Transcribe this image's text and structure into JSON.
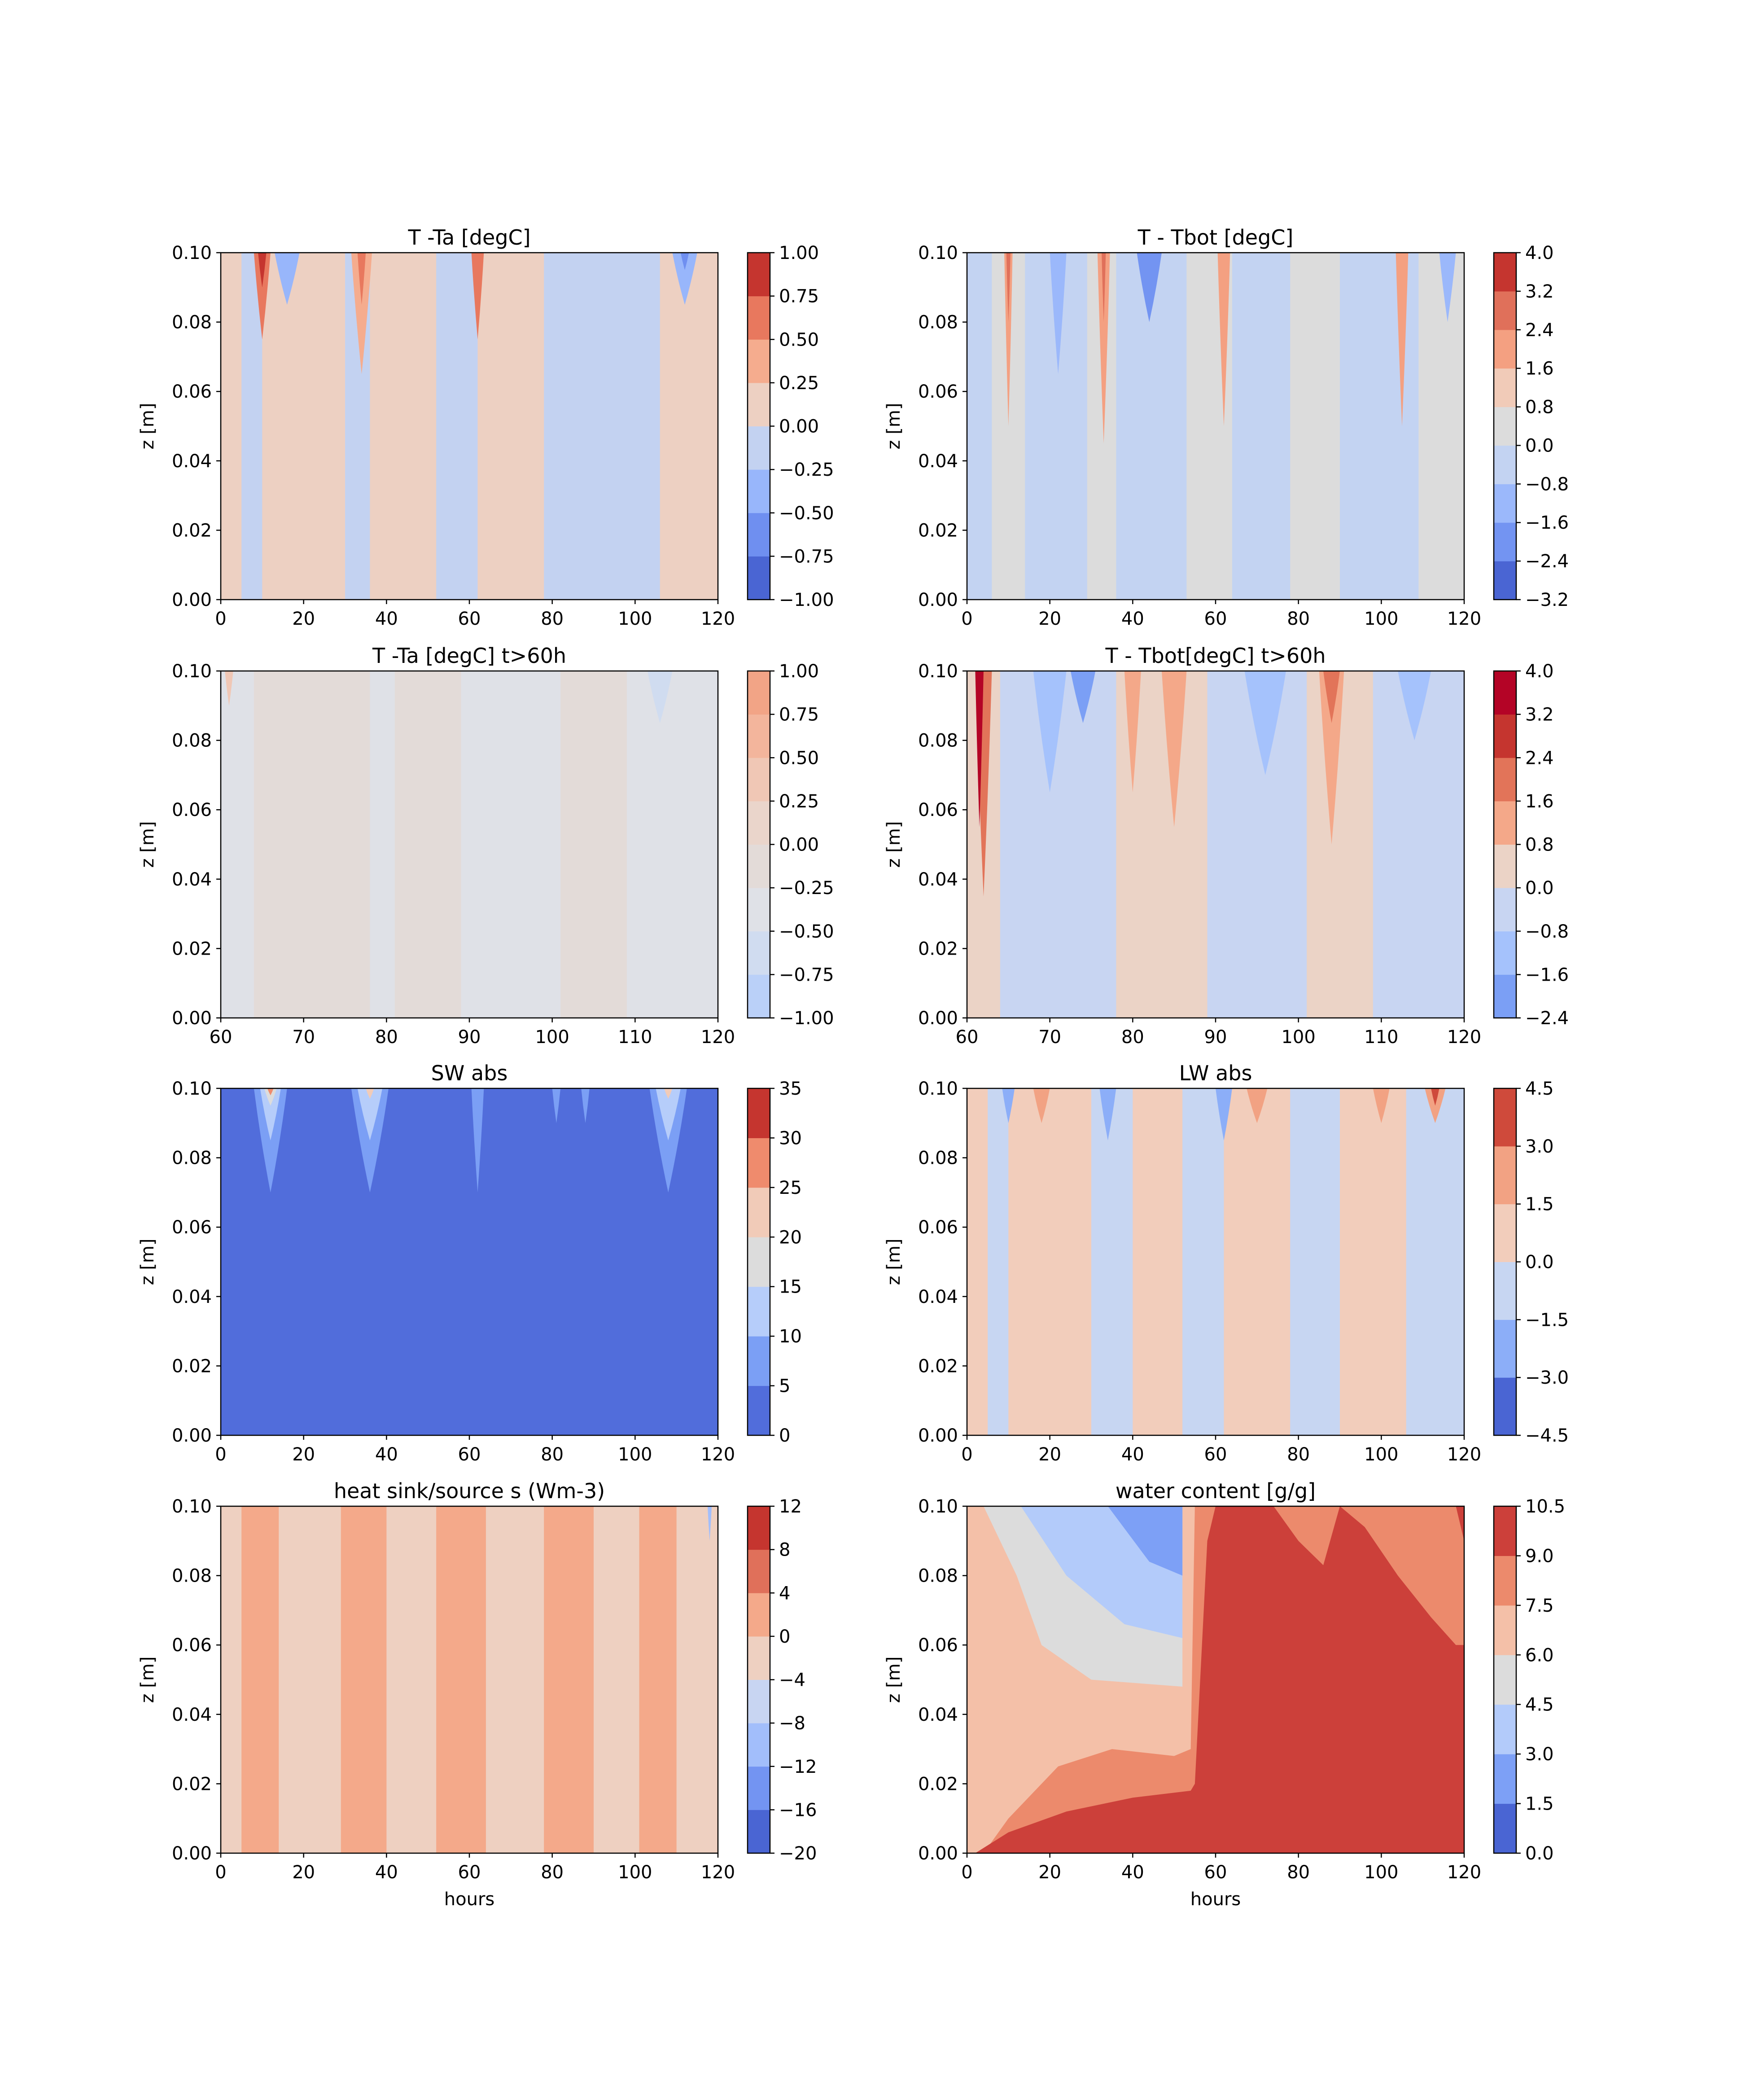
{
  "chart_data": [
    {
      "type": "contour",
      "title": "T -Ta [degC]",
      "xlabel": "",
      "ylabel": "z [m]",
      "xlim": [
        0,
        120
      ],
      "ylim": [
        0.0,
        0.1
      ],
      "xticks": [
        "0",
        "20",
        "40",
        "60",
        "80",
        "100",
        "120"
      ],
      "yticks": [
        "0.00",
        "0.02",
        "0.04",
        "0.06",
        "0.08",
        "0.10"
      ],
      "colorbar_ticks": [
        "1.00",
        "0.75",
        "0.50",
        "0.25",
        "0.00",
        "−0.25",
        "−0.50",
        "−0.75",
        "−1.00"
      ],
      "levels": [
        -1.0,
        -0.75,
        -0.5,
        -0.25,
        0.0,
        0.25,
        0.5,
        0.75,
        1.0
      ],
      "band_colors": [
        "#4a65d3",
        "#6f8ff0",
        "#98b6fb",
        "#c3d2f1",
        "#edd0c2",
        "#f5ac8e",
        "#e8785e",
        "#c5352f"
      ],
      "stripes": [
        {
          "x0": 0,
          "x1": 5,
          "band": 4
        },
        {
          "x0": 5,
          "x1": 10,
          "band": 3
        },
        {
          "x0": 10,
          "x1": 30,
          "band": 4
        },
        {
          "x0": 30,
          "x1": 36,
          "band": 3
        },
        {
          "x0": 36,
          "x1": 52,
          "band": 4
        },
        {
          "x0": 52,
          "x1": 62,
          "band": 3
        },
        {
          "x0": 62,
          "x1": 78,
          "band": 4
        },
        {
          "x0": 78,
          "x1": 106,
          "band": 3
        },
        {
          "x0": 106,
          "x1": 120,
          "band": 4
        }
      ],
      "features": [
        {
          "x": 10,
          "w": 4,
          "z": 0.075,
          "band": 6
        },
        {
          "x": 10,
          "w": 2,
          "z": 0.09,
          "band": 7
        },
        {
          "x": 34,
          "w": 5,
          "z": 0.065,
          "band": 5
        },
        {
          "x": 34,
          "w": 2,
          "z": 0.085,
          "band": 6
        },
        {
          "x": 62,
          "w": 3,
          "z": 0.075,
          "band": 6
        },
        {
          "x": 16,
          "w": 6,
          "z": 0.085,
          "band": 2
        },
        {
          "x": 112,
          "w": 6,
          "z": 0.085,
          "band": 2
        },
        {
          "x": 112,
          "w": 2,
          "z": 0.095,
          "band": 1
        }
      ]
    },
    {
      "type": "contour",
      "title": "T - Tbot [degC]",
      "xlabel": "",
      "ylabel": "z [m]",
      "xlim": [
        0,
        120
      ],
      "ylim": [
        0.0,
        0.1
      ],
      "xticks": [
        "0",
        "20",
        "40",
        "60",
        "80",
        "100",
        "120"
      ],
      "yticks": [
        "0.00",
        "0.02",
        "0.04",
        "0.06",
        "0.08",
        "0.10"
      ],
      "colorbar_ticks": [
        "4.0",
        "3.2",
        "2.4",
        "1.6",
        "0.8",
        "0.0",
        "−0.8",
        "−1.6",
        "−2.4",
        "−3.2"
      ],
      "levels": [
        -3.2,
        -2.4,
        -1.6,
        -0.8,
        0.0,
        0.8,
        1.6,
        2.4,
        3.2,
        4.0
      ],
      "band_colors": [
        "#4a65d3",
        "#7394f2",
        "#9bb8fb",
        "#c3d3f2",
        "#dcdcdc",
        "#f1cbb8",
        "#f4a081",
        "#e0705a",
        "#c5352f"
      ],
      "stripes": [
        {
          "x0": 0,
          "x1": 6,
          "band": 3
        },
        {
          "x0": 6,
          "x1": 14,
          "band": 4
        },
        {
          "x0": 14,
          "x1": 29,
          "band": 3
        },
        {
          "x0": 29,
          "x1": 36,
          "band": 4
        },
        {
          "x0": 36,
          "x1": 53,
          "band": 3
        },
        {
          "x0": 53,
          "x1": 64,
          "band": 4
        },
        {
          "x0": 64,
          "x1": 78,
          "band": 3
        },
        {
          "x0": 78,
          "x1": 90,
          "band": 4
        },
        {
          "x0": 90,
          "x1": 109,
          "band": 3
        },
        {
          "x0": 109,
          "x1": 120,
          "band": 4
        }
      ],
      "features": [
        {
          "x": 10,
          "w": 2,
          "z": 0.05,
          "band": 6
        },
        {
          "x": 10,
          "w": 1,
          "z": 0.08,
          "band": 7
        },
        {
          "x": 33,
          "w": 3,
          "z": 0.045,
          "band": 6
        },
        {
          "x": 33,
          "w": 1,
          "z": 0.08,
          "band": 7
        },
        {
          "x": 62,
          "w": 3,
          "z": 0.05,
          "band": 6
        },
        {
          "x": 105,
          "w": 3,
          "z": 0.05,
          "band": 6
        },
        {
          "x": 44,
          "w": 6,
          "z": 0.08,
          "band": 1
        },
        {
          "x": 22,
          "w": 4,
          "z": 0.065,
          "band": 2
        },
        {
          "x": 116,
          "w": 4,
          "z": 0.08,
          "band": 2
        }
      ]
    },
    {
      "type": "contour",
      "title": "T -Ta [degC] t>60h",
      "xlabel": "",
      "ylabel": "z [m]",
      "xlim": [
        60,
        120
      ],
      "ylim": [
        0.0,
        0.1
      ],
      "xticks": [
        "60",
        "70",
        "80",
        "90",
        "100",
        "110",
        "120"
      ],
      "yticks": [
        "0.00",
        "0.02",
        "0.04",
        "0.06",
        "0.08",
        "0.10"
      ],
      "colorbar_ticks": [
        "1.00",
        "0.75",
        "0.50",
        "0.25",
        "0.00",
        "−0.25",
        "−0.50",
        "−0.75",
        "−1.00"
      ],
      "levels": [
        -1.0,
        -0.75,
        -0.5,
        -0.25,
        0.0,
        0.25,
        0.5,
        0.75,
        1.0
      ],
      "band_colors": [
        "#bad0f8",
        "#d0dcf0",
        "#dfe1e7",
        "#e3dbd8",
        "#ead5cb",
        "#f0c7b5",
        "#f3b59c",
        "#f2a486"
      ],
      "stripes": [
        {
          "x0": 60,
          "x1": 64,
          "band": 2
        },
        {
          "x0": 64,
          "x1": 78,
          "band": 3
        },
        {
          "x0": 78,
          "x1": 81,
          "band": 2
        },
        {
          "x0": 81,
          "x1": 89,
          "band": 3
        },
        {
          "x0": 89,
          "x1": 101,
          "band": 2
        },
        {
          "x0": 101,
          "x1": 109,
          "band": 3
        },
        {
          "x0": 109,
          "x1": 120,
          "band": 2
        }
      ],
      "features": [
        {
          "x": 61,
          "w": 1,
          "z": 0.09,
          "band": 5
        },
        {
          "x": 113,
          "w": 3,
          "z": 0.085,
          "band": 1
        }
      ]
    },
    {
      "type": "contour",
      "title": "T - Tbot[degC] t>60h",
      "xlabel": "",
      "ylabel": "z [m]",
      "xlim": [
        60,
        120
      ],
      "ylim": [
        0.0,
        0.1
      ],
      "xticks": [
        "60",
        "70",
        "80",
        "90",
        "100",
        "110",
        "120"
      ],
      "yticks": [
        "0.00",
        "0.02",
        "0.04",
        "0.06",
        "0.08",
        "0.10"
      ],
      "colorbar_ticks": [
        "4.0",
        "3.2",
        "2.4",
        "1.6",
        "0.8",
        "0.0",
        "−0.8",
        "−1.6",
        "−2.4"
      ],
      "levels": [
        -2.4,
        -1.6,
        -0.8,
        0.0,
        0.8,
        1.6,
        2.4,
        3.2,
        4.0
      ],
      "band_colors": [
        "#7b9ff5",
        "#a5c2fc",
        "#c8d5f2",
        "#ebd3c6",
        "#f4a889",
        "#e27459",
        "#c5352f",
        "#b40426"
      ],
      "stripes": [
        {
          "x0": 60,
          "x1": 64,
          "band": 3
        },
        {
          "x0": 64,
          "x1": 78,
          "band": 2
        },
        {
          "x0": 78,
          "x1": 89,
          "band": 3
        },
        {
          "x0": 89,
          "x1": 101,
          "band": 2
        },
        {
          "x0": 101,
          "x1": 109,
          "band": 3
        },
        {
          "x0": 109,
          "x1": 120,
          "band": 2
        }
      ],
      "features": [
        {
          "x": 62,
          "w": 2,
          "z": 0.035,
          "band": 5
        },
        {
          "x": 61.5,
          "w": 1,
          "z": 0.055,
          "band": 7
        },
        {
          "x": 70,
          "w": 4,
          "z": 0.065,
          "band": 1
        },
        {
          "x": 74,
          "w": 3,
          "z": 0.085,
          "band": 0
        },
        {
          "x": 80,
          "w": 2,
          "z": 0.065,
          "band": 4
        },
        {
          "x": 85,
          "w": 3,
          "z": 0.055,
          "band": 4
        },
        {
          "x": 96,
          "w": 5,
          "z": 0.07,
          "band": 1
        },
        {
          "x": 104,
          "w": 3,
          "z": 0.05,
          "band": 4
        },
        {
          "x": 104,
          "w": 2,
          "z": 0.085,
          "band": 5
        },
        {
          "x": 114,
          "w": 4,
          "z": 0.08,
          "band": 1
        }
      ]
    },
    {
      "type": "contour",
      "title": "SW abs",
      "xlabel": "",
      "ylabel": "z [m]",
      "xlim": [
        0,
        120
      ],
      "ylim": [
        0.0,
        0.1
      ],
      "xticks": [
        "0",
        "20",
        "40",
        "60",
        "80",
        "100",
        "120"
      ],
      "yticks": [
        "0.00",
        "0.02",
        "0.04",
        "0.06",
        "0.08",
        "0.10"
      ],
      "colorbar_ticks": [
        "35",
        "30",
        "25",
        "20",
        "15",
        "10",
        "5",
        "0"
      ],
      "levels": [
        0,
        5,
        10,
        15,
        20,
        25,
        30,
        35
      ],
      "band_colors": [
        "#516ddb",
        "#7b9ff5",
        "#b6cdfa",
        "#dcdcdc",
        "#f1cbb8",
        "#ef8b6d",
        "#c5352f"
      ],
      "stripes": [
        {
          "x0": 0,
          "x1": 120,
          "band": 0
        }
      ],
      "features": [
        {
          "x": 12,
          "w": 8,
          "z": 0.07,
          "band": 1
        },
        {
          "x": 12,
          "w": 5,
          "z": 0.085,
          "band": 2
        },
        {
          "x": 12,
          "w": 3,
          "z": 0.095,
          "band": 3
        },
        {
          "x": 12,
          "w": 1.5,
          "z": 0.098,
          "band": 5
        },
        {
          "x": 36,
          "w": 9,
          "z": 0.07,
          "band": 1
        },
        {
          "x": 36,
          "w": 6,
          "z": 0.085,
          "band": 2
        },
        {
          "x": 36,
          "w": 2,
          "z": 0.097,
          "band": 4
        },
        {
          "x": 62,
          "w": 3,
          "z": 0.07,
          "band": 1
        },
        {
          "x": 81,
          "w": 2,
          "z": 0.09,
          "band": 1
        },
        {
          "x": 88,
          "w": 2,
          "z": 0.09,
          "band": 1
        },
        {
          "x": 108,
          "w": 9,
          "z": 0.07,
          "band": 1
        },
        {
          "x": 108,
          "w": 6,
          "z": 0.085,
          "band": 2
        },
        {
          "x": 108,
          "w": 2,
          "z": 0.097,
          "band": 4
        }
      ]
    },
    {
      "type": "contour",
      "title": "LW abs",
      "xlabel": "",
      "ylabel": "z [m]",
      "xlim": [
        0,
        120
      ],
      "ylim": [
        0.0,
        0.1
      ],
      "xticks": [
        "0",
        "20",
        "40",
        "60",
        "80",
        "100",
        "120"
      ],
      "yticks": [
        "0.00",
        "0.02",
        "0.04",
        "0.06",
        "0.08",
        "0.10"
      ],
      "colorbar_ticks": [
        "4.5",
        "3.0",
        "1.5",
        "0.0",
        "−1.5",
        "−3.0",
        "−4.5"
      ],
      "levels": [
        -4.5,
        -3.0,
        -1.5,
        0.0,
        1.5,
        3.0,
        4.5
      ],
      "band_colors": [
        "#4a65d3",
        "#8caef8",
        "#c7d6f2",
        "#f2cdbb",
        "#f2a283",
        "#cf4a3b"
      ],
      "stripes": [
        {
          "x0": 0,
          "x1": 5,
          "band": 3
        },
        {
          "x0": 5,
          "x1": 10,
          "band": 2
        },
        {
          "x0": 10,
          "x1": 30,
          "band": 3
        },
        {
          "x0": 30,
          "x1": 40,
          "band": 2
        },
        {
          "x0": 40,
          "x1": 52,
          "band": 3
        },
        {
          "x0": 52,
          "x1": 62,
          "band": 2
        },
        {
          "x0": 62,
          "x1": 78,
          "band": 3
        },
        {
          "x0": 78,
          "x1": 90,
          "band": 2
        },
        {
          "x0": 90,
          "x1": 106,
          "band": 3
        },
        {
          "x0": 106,
          "x1": 120,
          "band": 2
        }
      ],
      "features": [
        {
          "x": 10,
          "w": 3,
          "z": 0.09,
          "band": 1
        },
        {
          "x": 18,
          "w": 4,
          "z": 0.09,
          "band": 4
        },
        {
          "x": 34,
          "w": 4,
          "z": 0.085,
          "band": 1
        },
        {
          "x": 62,
          "w": 4,
          "z": 0.085,
          "band": 1
        },
        {
          "x": 70,
          "w": 5,
          "z": 0.09,
          "band": 4
        },
        {
          "x": 100,
          "w": 4,
          "z": 0.09,
          "band": 4
        },
        {
          "x": 113,
          "w": 5,
          "z": 0.09,
          "band": 4
        },
        {
          "x": 113,
          "w": 2,
          "z": 0.095,
          "band": 5
        }
      ]
    },
    {
      "type": "contour",
      "title": "heat sink/source s (Wm-3)",
      "xlabel": "hours",
      "ylabel": "z [m]",
      "xlim": [
        0,
        120
      ],
      "ylim": [
        0.0,
        0.1
      ],
      "xticks": [
        "0",
        "20",
        "40",
        "60",
        "80",
        "100",
        "120"
      ],
      "yticks": [
        "0.00",
        "0.02",
        "0.04",
        "0.06",
        "0.08",
        "0.10"
      ],
      "colorbar_ticks": [
        "12",
        "8",
        "4",
        "0",
        "−4",
        "−8",
        "−12",
        "−16",
        "−20"
      ],
      "levels": [
        -20,
        -16,
        -12,
        -8,
        -4,
        0,
        4,
        8,
        12
      ],
      "band_colors": [
        "#4a65d3",
        "#7394f2",
        "#a2befb",
        "#c8d5f2",
        "#eed0c1",
        "#f4a98a",
        "#e0705a",
        "#c5352f"
      ],
      "stripes": [
        {
          "x0": 0,
          "x1": 5,
          "band": 4
        },
        {
          "x0": 5,
          "x1": 14,
          "band": 5
        },
        {
          "x0": 14,
          "x1": 29,
          "band": 4
        },
        {
          "x0": 29,
          "x1": 40,
          "band": 5
        },
        {
          "x0": 40,
          "x1": 52,
          "band": 4
        },
        {
          "x0": 52,
          "x1": 64,
          "band": 5
        },
        {
          "x0": 64,
          "x1": 78,
          "band": 4
        },
        {
          "x0": 78,
          "x1": 90,
          "band": 5
        },
        {
          "x0": 90,
          "x1": 101,
          "band": 4
        },
        {
          "x0": 101,
          "x1": 110,
          "band": 5
        },
        {
          "x0": 110,
          "x1": 120,
          "band": 4
        }
      ],
      "features": [
        {
          "x": 118,
          "w": 1,
          "z": 0.09,
          "band": 2
        }
      ]
    },
    {
      "type": "contour",
      "title": "water content [g/g]",
      "xlabel": "hours",
      "ylabel": "z [m]",
      "xlim": [
        0,
        120
      ],
      "ylim": [
        0.0,
        0.1
      ],
      "xticks": [
        "0",
        "20",
        "40",
        "60",
        "80",
        "100",
        "120"
      ],
      "yticks": [
        "0.00",
        "0.02",
        "0.04",
        "0.06",
        "0.08",
        "0.10"
      ],
      "colorbar_ticks": [
        "10.5",
        "9.0",
        "7.5",
        "6.0",
        "4.5",
        "3.0",
        "1.5",
        "0.0"
      ],
      "levels": [
        0.0,
        1.5,
        3.0,
        4.5,
        6.0,
        7.5,
        9.0,
        10.5
      ],
      "band_colors": [
        "#4a65d3",
        "#7da0f6",
        "#b3cbfa",
        "#dcdcdc",
        "#f4c0a8",
        "#ec8a6c",
        "#cc403a"
      ],
      "stripes": [],
      "features": []
    }
  ]
}
